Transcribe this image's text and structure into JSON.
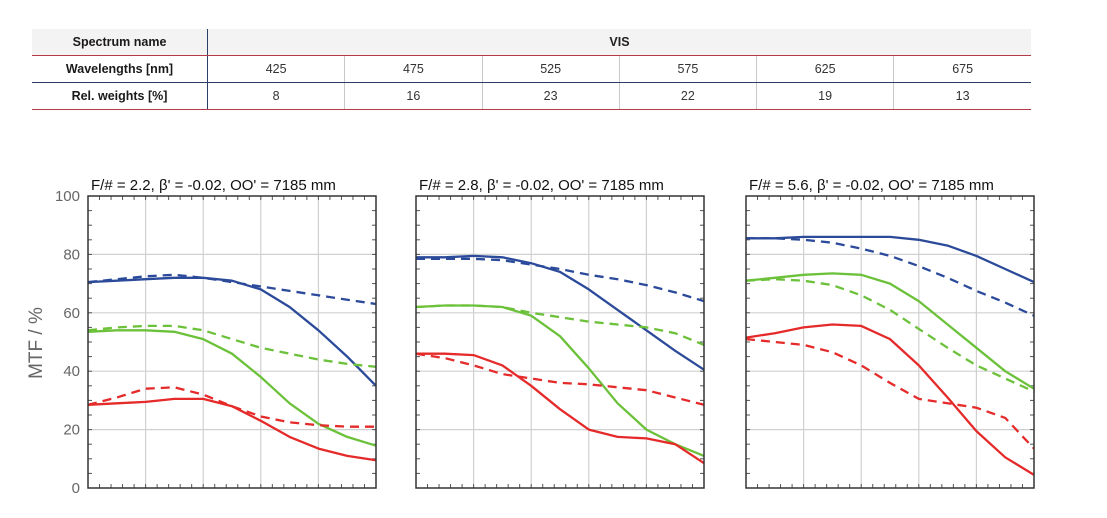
{
  "table": {
    "spectrum_label": "Spectrum name",
    "spectrum_value": "VIS",
    "wavelength_label": "Wavelengths [nm]",
    "wavelengths": [
      "425",
      "475",
      "525",
      "575",
      "625",
      "675"
    ],
    "weight_label": "Rel. weights [%]",
    "weights": [
      "8",
      "16",
      "23",
      "22",
      "19",
      "13"
    ]
  },
  "chart_data": {
    "type": "line",
    "ylabel": "MTF / %",
    "ylim": [
      0,
      100
    ],
    "yticks": [
      "0",
      "20",
      "40",
      "60",
      "80",
      "100"
    ],
    "xlim": [
      0,
      1
    ],
    "grid": true,
    "colors": {
      "blue": "#2b4a9a",
      "green": "#6cc13a",
      "red": "#e52a2a"
    },
    "panels": [
      {
        "title": "F/# = 2.2, β' = -0.02, OO' = 7185 mm",
        "series": [
          {
            "color": "blue",
            "dash": false,
            "x": [
              0,
              0.1,
              0.2,
              0.3,
              0.4,
              0.5,
              0.6,
              0.7,
              0.8,
              0.9,
              1.0
            ],
            "y": [
              70.5,
              71,
              71.5,
              72,
              72,
              71,
              68,
              62,
              54,
              45,
              35
            ]
          },
          {
            "color": "blue",
            "dash": true,
            "x": [
              0,
              0.1,
              0.2,
              0.3,
              0.4,
              0.5,
              0.6,
              0.7,
              0.8,
              0.9,
              1.0
            ],
            "y": [
              70.5,
              71.5,
              72.5,
              73,
              72,
              70.5,
              69,
              67.5,
              66,
              64.5,
              63
            ]
          },
          {
            "color": "green",
            "dash": false,
            "x": [
              0,
              0.1,
              0.2,
              0.3,
              0.4,
              0.5,
              0.6,
              0.7,
              0.8,
              0.9,
              1.0
            ],
            "y": [
              53.5,
              54,
              54,
              53.5,
              51,
              46,
              38,
              29,
              22,
              17.5,
              14.5
            ]
          },
          {
            "color": "green",
            "dash": true,
            "x": [
              0,
              0.1,
              0.2,
              0.3,
              0.4,
              0.5,
              0.6,
              0.7,
              0.8,
              0.9,
              1.0
            ],
            "y": [
              54,
              55,
              55.5,
              55.5,
              54,
              51,
              48,
              46,
              44,
              42.5,
              41.5
            ]
          },
          {
            "color": "red",
            "dash": false,
            "x": [
              0,
              0.1,
              0.2,
              0.3,
              0.4,
              0.5,
              0.6,
              0.7,
              0.8,
              0.9,
              1.0
            ],
            "y": [
              28.5,
              29,
              29.5,
              30.5,
              30.5,
              28,
              23,
              17.5,
              13.5,
              11,
              9.5
            ]
          },
          {
            "color": "red",
            "dash": true,
            "x": [
              0,
              0.1,
              0.2,
              0.3,
              0.4,
              0.5,
              0.6,
              0.7,
              0.8,
              0.9,
              1.0
            ],
            "y": [
              28.5,
              31,
              34,
              34.5,
              32,
              28,
              24.5,
              22.5,
              21.5,
              21,
              21
            ]
          }
        ]
      },
      {
        "title": "F/# = 2.8, β' = -0.02, OO' = 7185 mm",
        "series": [
          {
            "color": "blue",
            "dash": false,
            "x": [
              0,
              0.1,
              0.2,
              0.3,
              0.4,
              0.5,
              0.6,
              0.7,
              0.8,
              0.9,
              1.0
            ],
            "y": [
              79,
              79,
              79.5,
              79,
              77,
              74,
              68,
              61,
              54,
              47,
              40.5
            ]
          },
          {
            "color": "blue",
            "dash": true,
            "x": [
              0,
              0.1,
              0.2,
              0.3,
              0.4,
              0.5,
              0.6,
              0.7,
              0.8,
              0.9,
              1.0
            ],
            "y": [
              78.5,
              78.5,
              78.5,
              78,
              76.5,
              75,
              73,
              71.5,
              69.5,
              67,
              64
            ]
          },
          {
            "color": "green",
            "dash": false,
            "x": [
              0,
              0.1,
              0.2,
              0.3,
              0.4,
              0.5,
              0.6,
              0.7,
              0.8,
              0.9,
              1.0
            ],
            "y": [
              62,
              62.5,
              62.5,
              62,
              59,
              52,
              41,
              29,
              20,
              15,
              11
            ]
          },
          {
            "color": "green",
            "dash": true,
            "x": [
              0,
              0.1,
              0.2,
              0.3,
              0.4,
              0.5,
              0.6,
              0.7,
              0.8,
              0.9,
              1.0
            ],
            "y": [
              62,
              62.5,
              62.5,
              62,
              60,
              58.5,
              57,
              56,
              55,
              53,
              49
            ]
          },
          {
            "color": "red",
            "dash": false,
            "x": [
              0,
              0.1,
              0.2,
              0.3,
              0.4,
              0.5,
              0.6,
              0.7,
              0.8,
              0.9,
              1.0
            ],
            "y": [
              46,
              46,
              45.5,
              42,
              35,
              27,
              20,
              17.5,
              17,
              15,
              8.5
            ]
          },
          {
            "color": "red",
            "dash": true,
            "x": [
              0,
              0.1,
              0.2,
              0.3,
              0.4,
              0.5,
              0.6,
              0.7,
              0.8,
              0.9,
              1.0
            ],
            "y": [
              46,
              44.5,
              42,
              39,
              37.5,
              36,
              35.5,
              34.5,
              33.5,
              31,
              28.5
            ]
          }
        ]
      },
      {
        "title": "F/# = 5.6, β' = -0.02, OO' = 7185 mm",
        "series": [
          {
            "color": "blue",
            "dash": false,
            "x": [
              0,
              0.1,
              0.2,
              0.3,
              0.4,
              0.5,
              0.6,
              0.7,
              0.8,
              0.9,
              1.0
            ],
            "y": [
              85.5,
              85.5,
              86,
              86,
              86,
              86,
              85,
              83,
              79.5,
              75,
              70.5
            ]
          },
          {
            "color": "blue",
            "dash": true,
            "x": [
              0,
              0.1,
              0.2,
              0.3,
              0.4,
              0.5,
              0.6,
              0.7,
              0.8,
              0.9,
              1.0
            ],
            "y": [
              85.5,
              85.5,
              85,
              84,
              82,
              79.5,
              76,
              72,
              67.5,
              63.5,
              59
            ]
          },
          {
            "color": "green",
            "dash": false,
            "x": [
              0,
              0.1,
              0.2,
              0.3,
              0.4,
              0.5,
              0.6,
              0.7,
              0.8,
              0.9,
              1.0
            ],
            "y": [
              71,
              72,
              73,
              73.5,
              73,
              70,
              64,
              56,
              48,
              40,
              34
            ]
          },
          {
            "color": "green",
            "dash": true,
            "x": [
              0,
              0.1,
              0.2,
              0.3,
              0.4,
              0.5,
              0.6,
              0.7,
              0.8,
              0.9,
              1.0
            ],
            "y": [
              71,
              71.5,
              71,
              69.5,
              66,
              61,
              54.5,
              48,
              42,
              37.5,
              33
            ]
          },
          {
            "color": "red",
            "dash": false,
            "x": [
              0,
              0.1,
              0.2,
              0.3,
              0.4,
              0.5,
              0.6,
              0.7,
              0.8,
              0.9,
              1.0
            ],
            "y": [
              51.5,
              53,
              55,
              56,
              55.5,
              51,
              42,
              31,
              19.5,
              10.5,
              4.5
            ]
          },
          {
            "color": "red",
            "dash": true,
            "x": [
              0,
              0.1,
              0.2,
              0.3,
              0.4,
              0.5,
              0.6,
              0.7,
              0.8,
              0.9,
              1.0
            ],
            "y": [
              51,
              50,
              49,
              46.5,
              42,
              36,
              30.5,
              29,
              27.5,
              24,
              13.5
            ]
          }
        ]
      }
    ]
  }
}
